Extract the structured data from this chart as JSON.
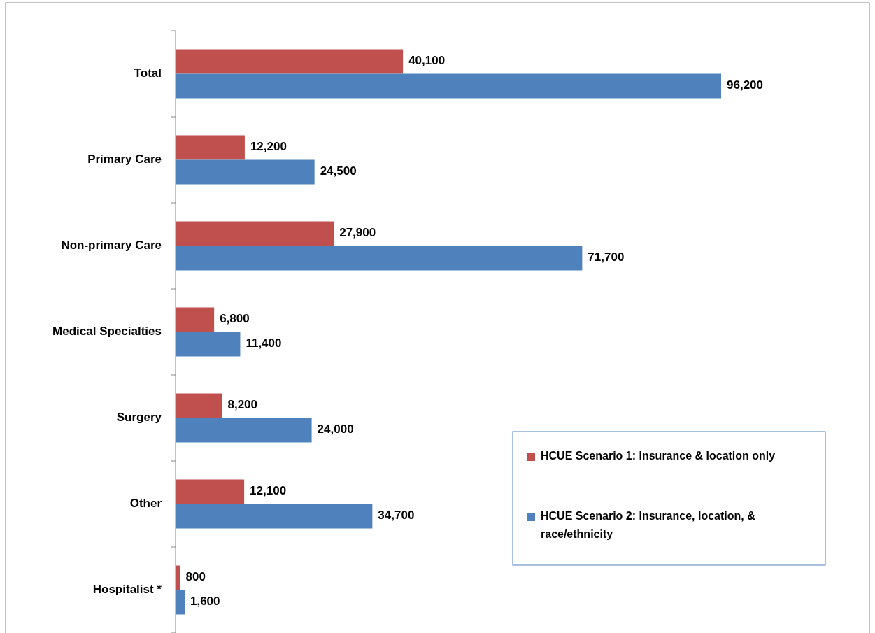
{
  "chart_data": {
    "type": "bar",
    "orientation": "horizontal",
    "categories": [
      "Total",
      "Primary Care",
      "Non-primary Care",
      "Medical Specialties",
      "Surgery",
      "Other",
      "Hospitalist *"
    ],
    "series": [
      {
        "name": "HCUE Scenario 1: Insurance & location only",
        "color": "#c0504d",
        "values": [
          40100,
          12200,
          27900,
          6800,
          8200,
          12100,
          800
        ],
        "value_labels": [
          "40,100",
          "12,200",
          "27,900",
          "6,800",
          "8,200",
          "12,100",
          "800"
        ]
      },
      {
        "name": "HCUE Scenario 2: Insurance, location, & race/ethnicity",
        "color": "#4f81bd",
        "values": [
          96200,
          24500,
          71700,
          11400,
          24000,
          34700,
          1600
        ],
        "value_labels": [
          "96,200",
          "24,500",
          "71,700",
          "11,400",
          "24,000",
          "34,700",
          "1,600"
        ]
      }
    ],
    "legend": "bottom right"
  }
}
